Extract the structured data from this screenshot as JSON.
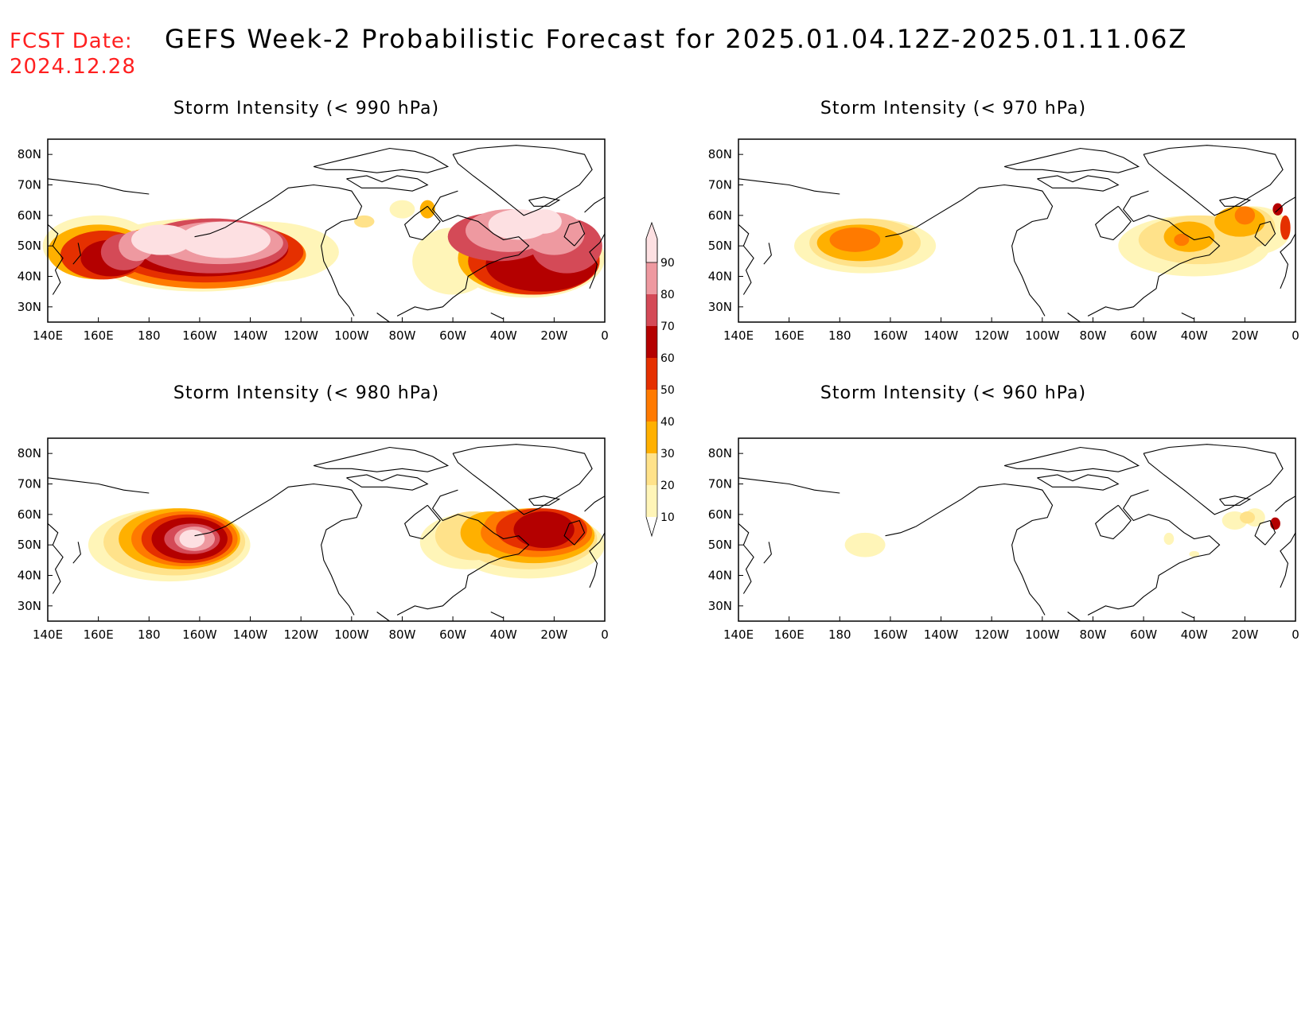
{
  "header": {
    "fcst_label": "FCST Date:",
    "fcst_date": "2024.12.28",
    "title": "GEFS Week-2 Probabilistic Forecast for 2025.01.04.12Z-2025.01.11.06Z"
  },
  "axes": {
    "lon_labels": [
      "140E",
      "160E",
      "180",
      "160W",
      "140W",
      "120W",
      "100W",
      "80W",
      "60W",
      "40W",
      "20W",
      "0"
    ],
    "lat_labels": [
      "80N",
      "70N",
      "60N",
      "50N",
      "40N",
      "30N"
    ]
  },
  "panels": [
    {
      "id": "p990",
      "title": "Storm Intensity (< 990 hPa)"
    },
    {
      "id": "p970",
      "title": "Storm Intensity (< 970 hPa)"
    },
    {
      "id": "p980",
      "title": "Storm Intensity (< 980 hPa)"
    },
    {
      "id": "p960",
      "title": "Storm Intensity (< 960 hPa)"
    }
  ],
  "colorbar": {
    "levels": [
      "10",
      "20",
      "30",
      "40",
      "50",
      "60",
      "70",
      "80",
      "90"
    ],
    "colors": [
      "#fff5b8",
      "#ffe28a",
      "#ffb000",
      "#ff7a00",
      "#e53000",
      "#b40000",
      "#d44a57",
      "#ee99a0",
      "#fde0e2"
    ]
  }
}
